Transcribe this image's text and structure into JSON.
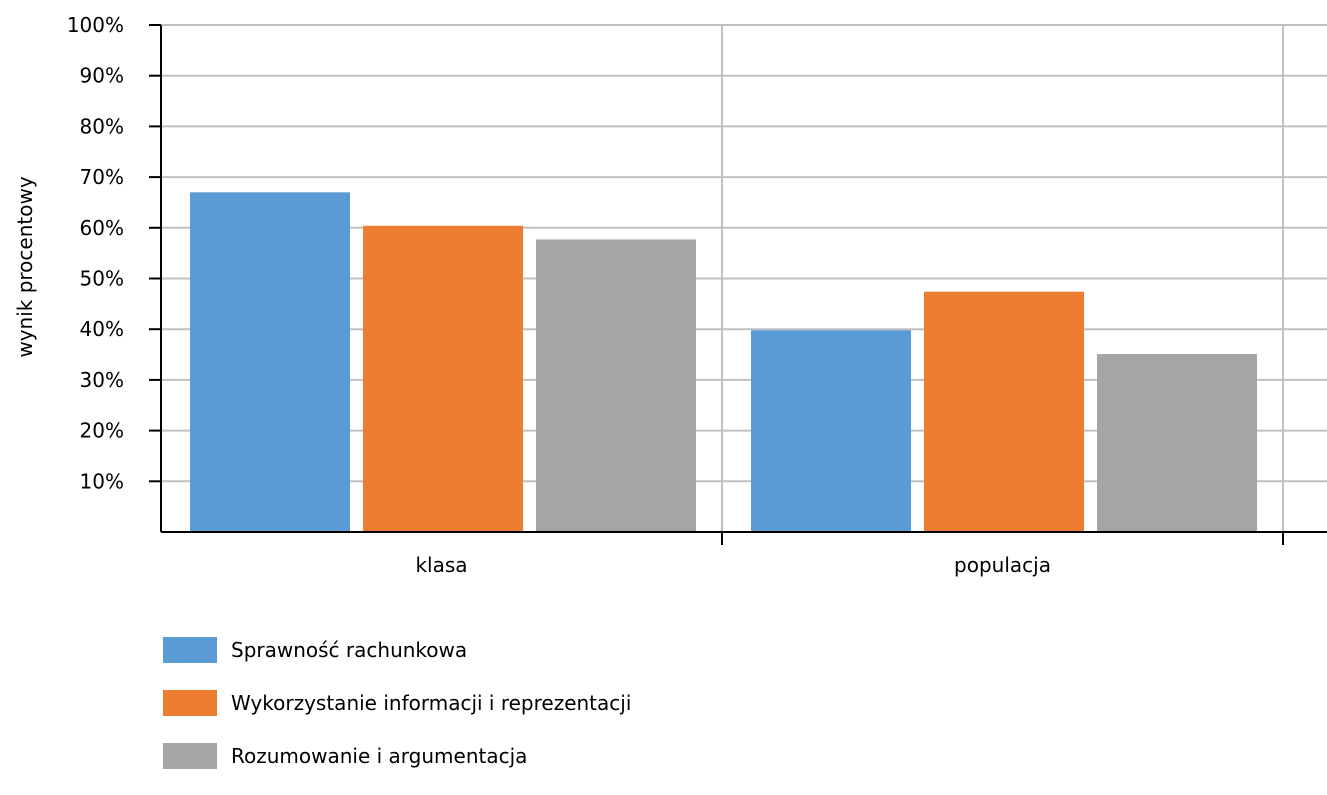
{
  "chart_data": {
    "type": "bar",
    "ylabel": "wynik procentowy",
    "xlabel": "",
    "categories": [
      "klasa",
      "populacja"
    ],
    "ylim": [
      0,
      100
    ],
    "yticks": [
      "10%",
      "20%",
      "30%",
      "40%",
      "50%",
      "60%",
      "70%",
      "80%",
      "90%",
      "100%"
    ],
    "grid": true,
    "legend_position": "bottom-left",
    "series": [
      {
        "name": "Sprawność rachunkowa",
        "color": "#5b9bd5",
        "values": [
          67,
          39.8
        ]
      },
      {
        "name": "Wykorzystanie informacji i reprezentacji",
        "color": "#ed7d31",
        "values": [
          60.4,
          47.4
        ]
      },
      {
        "name": "Rozumowanie i argumentacja",
        "color": "#a5a5a5",
        "values": [
          57.7,
          35.1
        ]
      }
    ]
  }
}
